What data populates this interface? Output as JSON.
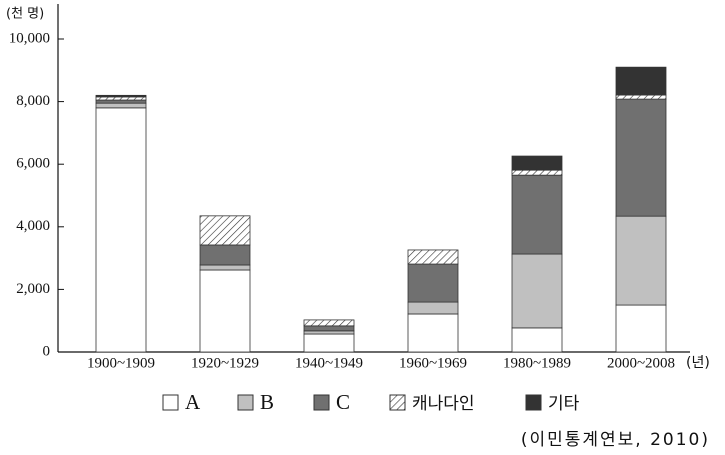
{
  "chart_data": {
    "type": "stacked_bar",
    "y_label": "(천 명)",
    "x_label": "(년)",
    "source": "(이민통계연보, 2010)",
    "categories": [
      "1900~1909",
      "1920~1929",
      "1940~1949",
      "1960~1969",
      "1980~1989",
      "2000~2008"
    ],
    "series": [
      {
        "name": "A",
        "color": "#ffffff",
        "values": [
          7800,
          2620,
          575,
          1215,
          770,
          1500
        ]
      },
      {
        "name": "B",
        "color": "#c0c0c0",
        "values": [
          150,
          160,
          100,
          380,
          2360,
          2840
        ]
      },
      {
        "name": "C",
        "color": "#707070",
        "values": [
          100,
          640,
          160,
          1215,
          2520,
          3740
        ]
      },
      {
        "name": "캐나다인",
        "color": "#ffffff",
        "hatch": true,
        "values": [
          100,
          930,
          190,
          450,
          160,
          130
        ]
      },
      {
        "name": "기타",
        "color": "#333333",
        "values": [
          50,
          0,
          0,
          0,
          450,
          890
        ]
      }
    ],
    "ylim": [
      0,
      10000
    ],
    "yticks": [
      0,
      {
        "value": 2000,
        "label": "2,000"
      },
      {
        "value": 4000,
        "label": "4,000"
      },
      {
        "value": 6000,
        "label": "6,000"
      },
      {
        "value": 8000,
        "label": "8,000"
      },
      {
        "value": 10000,
        "label": "10,000"
      }
    ],
    "grid": false
  }
}
